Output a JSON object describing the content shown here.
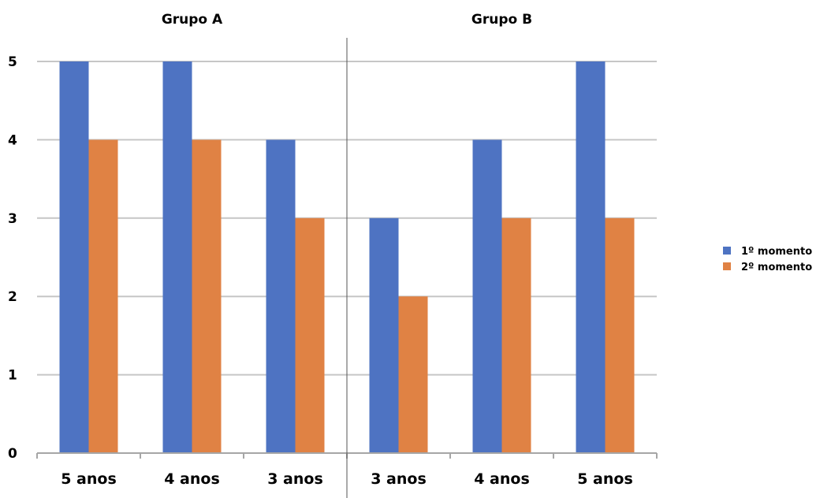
{
  "chart_data": {
    "type": "bar",
    "groups": [
      {
        "name": "Grupo A",
        "categories": [
          "5 anos",
          "4 anos",
          "3 anos"
        ]
      },
      {
        "name": "Grupo B",
        "categories": [
          "3 anos",
          "4 anos",
          "5 anos"
        ]
      }
    ],
    "categories": [
      "5 anos",
      "4 anos",
      "3 anos",
      "3 anos",
      "4 anos",
      "5 anos"
    ],
    "series": [
      {
        "name": "1º momento",
        "color": "#4e73c2",
        "values": [
          5,
          5,
          4,
          3,
          4,
          5
        ]
      },
      {
        "name": "2º momento",
        "color": "#e08244",
        "values": [
          4,
          4,
          3,
          2,
          3,
          3
        ]
      }
    ],
    "y_ticks": [
      "0",
      "1",
      "2",
      "3",
      "4",
      "5"
    ],
    "ylim": [
      0,
      5
    ],
    "grid": true,
    "legend_position": "right"
  }
}
